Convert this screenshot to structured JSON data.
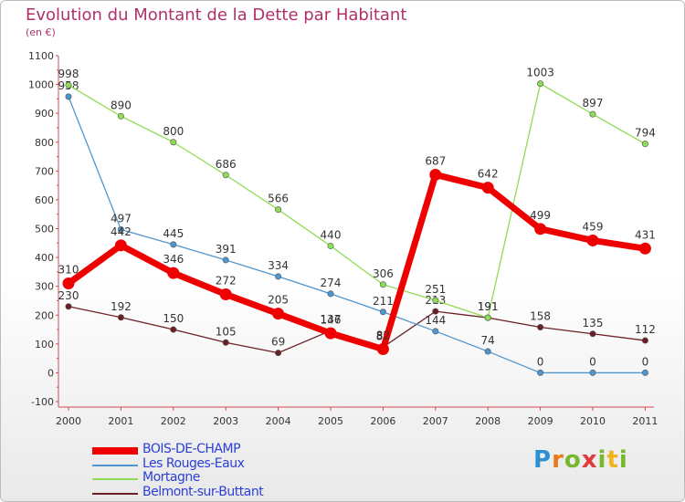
{
  "title": "Evolution du Montant de la Dette par Habitant",
  "subtitle": "(en €)",
  "logo": {
    "text": "Proxiti",
    "letter_colors": [
      "#2e8fd3",
      "#e87a1a",
      "#77b82e",
      "#e23b3b",
      "#77b82e",
      "#f0b51c",
      "#77b82e"
    ]
  },
  "chart_data": {
    "type": "line",
    "x": [
      "2000",
      "2001",
      "2002",
      "2003",
      "2004",
      "2005",
      "2006",
      "2007",
      "2008",
      "2009",
      "2010",
      "2011"
    ],
    "ylim": [
      -100,
      1100
    ],
    "y_ticks": [
      -100,
      0,
      100,
      200,
      300,
      400,
      500,
      600,
      700,
      800,
      900,
      1000,
      1100
    ],
    "grid": false,
    "legend_position": "bottom-left",
    "series": [
      {
        "name": "Belmont-sur-Buttant",
        "color": "#6b1f24",
        "values": [
          230,
          192,
          150,
          105,
          69,
          146,
          89,
          213,
          191,
          158,
          135,
          112
        ]
      },
      {
        "name": "Les Rouges-Eaux",
        "color": "#4f95cf",
        "values": [
          958,
          497,
          445,
          391,
          334,
          274,
          211,
          144,
          74,
          0,
          0,
          0
        ]
      },
      {
        "name": "Mortagne",
        "color": "#8fdc55",
        "values": [
          998,
          890,
          800,
          686,
          566,
          440,
          306,
          251,
          191,
          1003,
          897,
          794
        ]
      },
      {
        "name": "BOIS-DE-CHAMP",
        "color": "#ee0000",
        "values": [
          310,
          442,
          346,
          272,
          205,
          137,
          82,
          687,
          642,
          499,
          459,
          431
        ]
      }
    ],
    "legend_order": [
      "BOIS-DE-CHAMP",
      "Les Rouges-Eaux",
      "Mortagne",
      "Belmont-sur-Buttant"
    ]
  }
}
